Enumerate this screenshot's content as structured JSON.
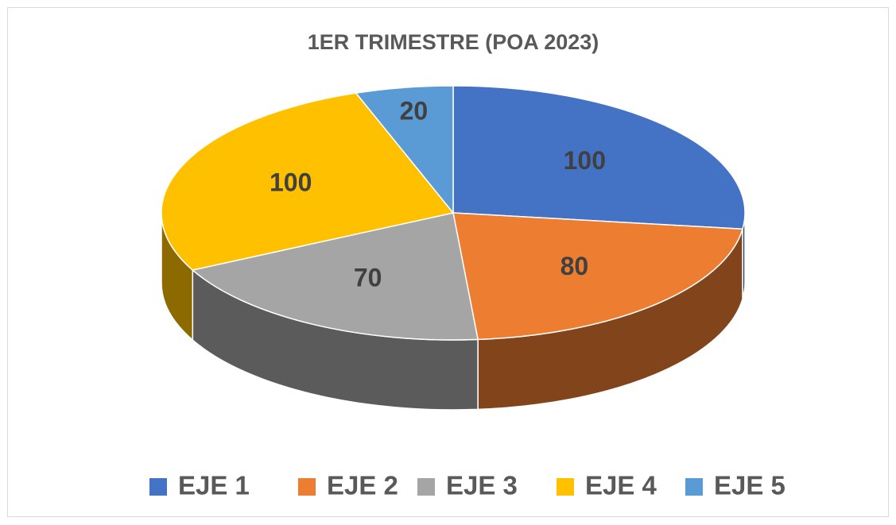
{
  "chart_data": {
    "type": "pie",
    "title": "1ER TRIMESTRE (POA 2023)",
    "categories": [
      "EJE 1",
      "EJE 2",
      "EJE 3",
      "EJE 4",
      "EJE 5"
    ],
    "values": [
      100,
      80,
      70,
      100,
      20
    ],
    "colors": [
      "#4472c4",
      "#ed7d31",
      "#a5a5a5",
      "#ffc000",
      "#5b9bd5"
    ],
    "legend": "bottom"
  }
}
